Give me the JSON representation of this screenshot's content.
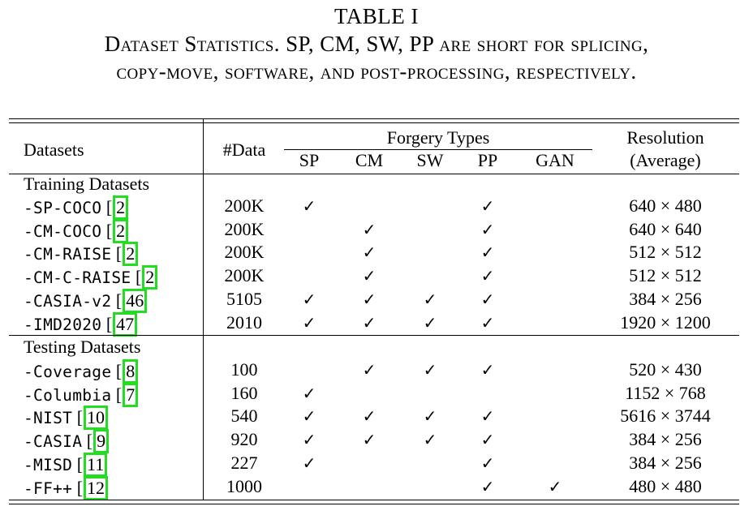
{
  "caption": {
    "table_number": "TABLE I",
    "line1": "Dataset Statistics. SP, CM, SW, PP are short for splicing,",
    "line2": "copy-move, software, and post-processing, respectively."
  },
  "header": {
    "datasets": "Datasets",
    "data_count": "#Data",
    "forgery_types": "Forgery Types",
    "forgery_cols": [
      "SP",
      "CM",
      "SW",
      "PP",
      "GAN"
    ],
    "resolution": "Resolution",
    "resolution_sub": "(Average)"
  },
  "training": {
    "section_label": "Training Datasets",
    "rows": [
      {
        "name": "-SP-COCO",
        "ref": "2",
        "data": "200K",
        "checks": [
          true,
          false,
          false,
          true,
          false
        ],
        "resolution": "640 × 480"
      },
      {
        "name": "-CM-COCO",
        "ref": "2",
        "data": "200K",
        "checks": [
          false,
          true,
          false,
          true,
          false
        ],
        "resolution": "640 × 640"
      },
      {
        "name": "-CM-RAISE",
        "ref": "2",
        "data": "200K",
        "checks": [
          false,
          true,
          false,
          true,
          false
        ],
        "resolution": "512 × 512"
      },
      {
        "name": "-CM-C-RAISE",
        "ref": "2",
        "data": "200K",
        "checks": [
          false,
          true,
          false,
          true,
          false
        ],
        "resolution": "512 × 512"
      },
      {
        "name": "-CASIA-v2",
        "ref": "46",
        "data": "5105",
        "checks": [
          true,
          true,
          true,
          true,
          false
        ],
        "resolution": "384 × 256"
      },
      {
        "name": "-IMD2020",
        "ref": "47",
        "data": "2010",
        "checks": [
          true,
          true,
          true,
          true,
          false
        ],
        "resolution": "1920 × 1200"
      }
    ]
  },
  "testing": {
    "section_label": "Testing Datasets",
    "rows": [
      {
        "name": "-Coverage",
        "ref": "8",
        "data": "100",
        "checks": [
          false,
          true,
          true,
          true,
          false
        ],
        "resolution": "520 × 430"
      },
      {
        "name": "-Columbia",
        "ref": "7",
        "data": "160",
        "checks": [
          true,
          false,
          false,
          false,
          false
        ],
        "resolution": "1152 × 768"
      },
      {
        "name": "-NIST",
        "ref": "10",
        "data": "540",
        "checks": [
          true,
          true,
          true,
          true,
          false
        ],
        "resolution": "5616 × 3744"
      },
      {
        "name": "-CASIA",
        "ref": "9",
        "data": "920",
        "checks": [
          true,
          true,
          true,
          true,
          false
        ],
        "resolution": "384 × 256"
      },
      {
        "name": "-MISD",
        "ref": "11",
        "data": "227",
        "checks": [
          true,
          false,
          false,
          true,
          false
        ],
        "resolution": "384 × 256"
      },
      {
        "name": "-FF++",
        "ref": "12",
        "data": "1000",
        "checks": [
          false,
          false,
          false,
          true,
          true
        ],
        "resolution": "480 × 480"
      }
    ]
  },
  "check_glyph": "✓"
}
